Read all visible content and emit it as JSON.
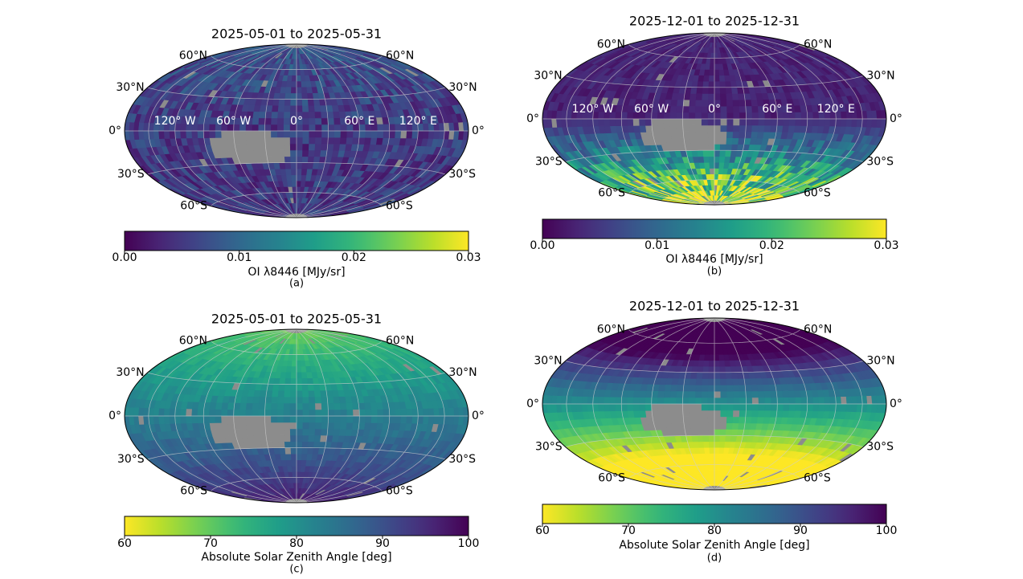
{
  "chart_data": [
    {
      "type": "heatmap",
      "projection": "hammer-aitoff",
      "title": "2025-05-01 to 2025-05-31",
      "lat_labels_left": [
        "60°N",
        "30°N",
        "0°",
        "30°S",
        "60°S"
      ],
      "lat_labels_right": [
        "60°N",
        "30°N",
        "0°",
        "30°S",
        "60°S"
      ],
      "lon_labels": [
        "120° W",
        "60° W",
        "0°",
        "60° E",
        "120° E"
      ],
      "colorbar": {
        "cmap": "viridis",
        "reversed": false,
        "range": [
          0.0,
          0.03
        ],
        "ticks": [
          "0.00",
          "0.01",
          "0.02",
          "0.03"
        ],
        "label": "OI λ8446 [MJy/sr]"
      },
      "panel_label": "(a)",
      "pattern": "low-uniform",
      "no_data_region": "grey patch centered near 45° W, 15° S"
    },
    {
      "type": "heatmap",
      "projection": "hammer-aitoff",
      "title": "2025-12-01 to 2025-12-31",
      "lat_labels_left": [
        "60°N",
        "30°N",
        "0°",
        "30°S",
        "60°S"
      ],
      "lat_labels_right": [
        "60°N",
        "30°N",
        "0°",
        "30°S",
        "60°S"
      ],
      "lon_labels": [
        "120° W",
        "60° W",
        "0°",
        "60° E",
        "120° E"
      ],
      "colorbar": {
        "cmap": "viridis",
        "reversed": false,
        "range": [
          0.0,
          0.03
        ],
        "ticks": [
          "0.00",
          "0.01",
          "0.02",
          "0.03"
        ],
        "label": "OI λ8446 [MJy/sr]"
      },
      "panel_label": "(b)",
      "pattern": "high-south",
      "no_data_region": "grey patch centered near 30° W, 15° S"
    },
    {
      "type": "heatmap",
      "projection": "hammer-aitoff",
      "title": "2025-05-01 to 2025-05-31",
      "lat_labels_left": [
        "60°N",
        "30°N",
        "0°",
        "30°S",
        "60°S"
      ],
      "lat_labels_right": [
        "60°N",
        "30°N",
        "0°",
        "30°S",
        "60°S"
      ],
      "lon_labels": [],
      "colorbar": {
        "cmap": "viridis",
        "reversed": true,
        "range": [
          60,
          100
        ],
        "ticks": [
          "60",
          "70",
          "80",
          "90",
          "100"
        ],
        "label": "Absolute Solar Zenith Angle [deg]"
      },
      "panel_label": "(c)",
      "pattern": "sza-may",
      "no_data_region": "grey patch centered near 45° W, 15° S"
    },
    {
      "type": "heatmap",
      "projection": "hammer-aitoff",
      "title": "2025-12-01 to 2025-12-31",
      "lat_labels_left": [
        "60°N",
        "30°N",
        "0°",
        "30°S",
        "60°S"
      ],
      "lat_labels_right": [
        "60°N",
        "30°N",
        "0°",
        "30°S",
        "60°S"
      ],
      "lon_labels": [],
      "colorbar": {
        "cmap": "viridis",
        "reversed": true,
        "range": [
          60,
          100
        ],
        "ticks": [
          "60",
          "70",
          "80",
          "90",
          "100"
        ],
        "label": "Absolute Solar Zenith Angle [deg]"
      },
      "panel_label": "(d)",
      "pattern": "sza-dec",
      "no_data_region": "grey patch centered near 30° W, 15° S"
    }
  ],
  "colors": {
    "no_data": "#8c8c8c",
    "gridline": "#cfcfcf",
    "lon_label": "#ffffff",
    "viridis_low": "#440154",
    "viridis_high": "#fde725"
  }
}
